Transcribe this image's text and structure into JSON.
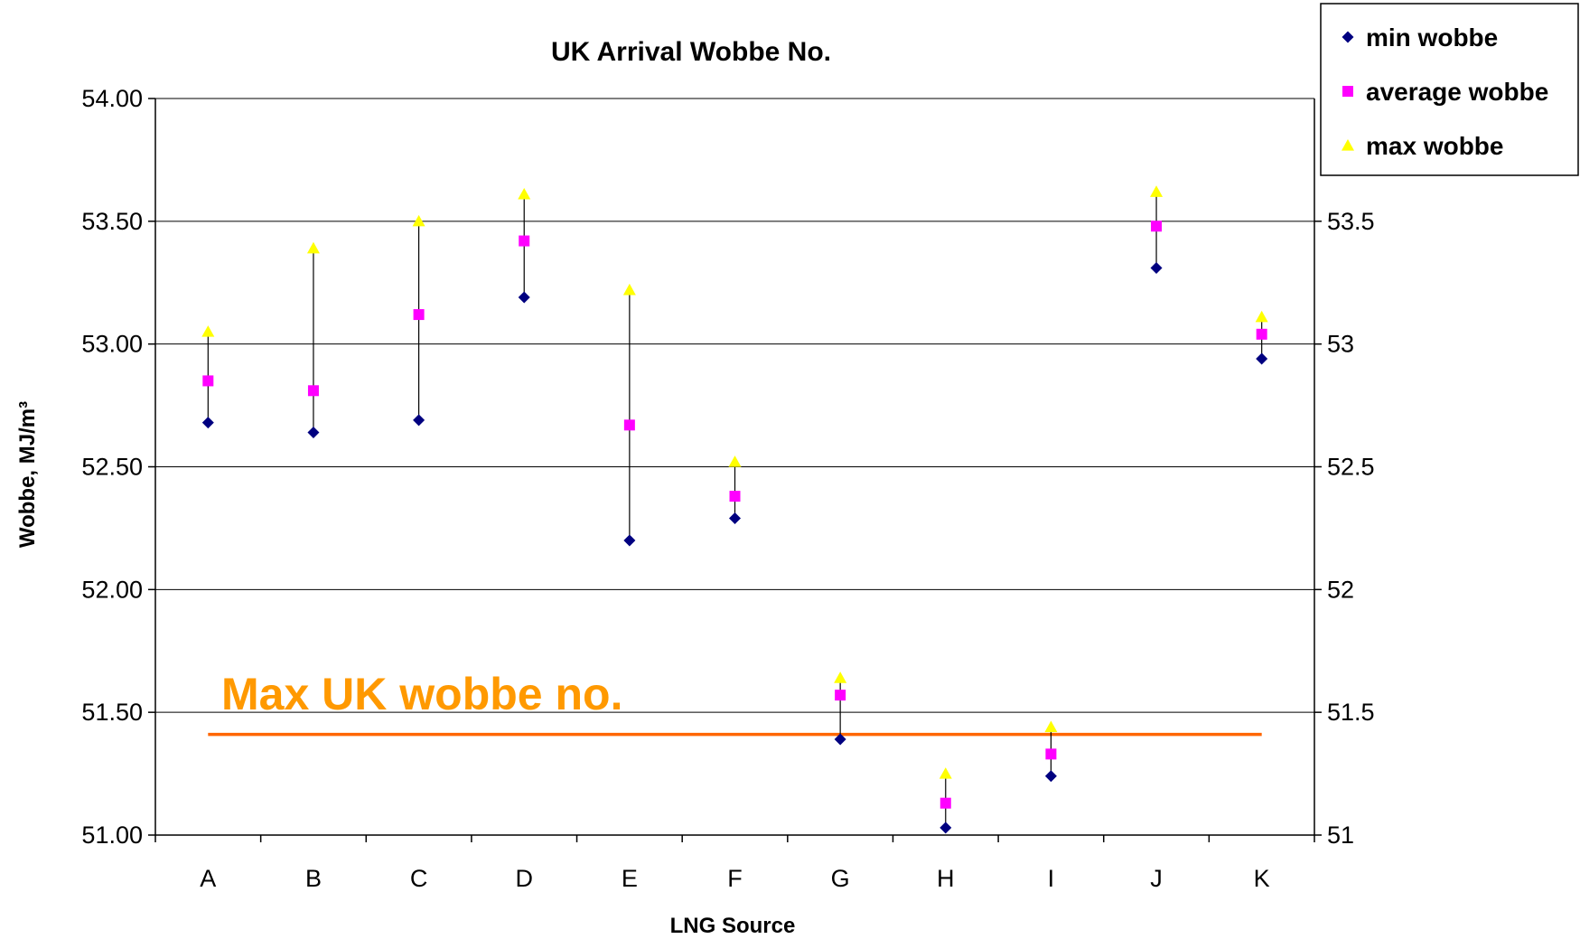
{
  "chart_data": {
    "type": "scatter",
    "title": "UK Arrival Wobbe No.",
    "xlabel": "LNG Source",
    "ylabel": "Wobbe, MJ/m³",
    "ylim": [
      51.0,
      54.0
    ],
    "y_ticks_left": [
      "51.00",
      "51.50",
      "52.00",
      "52.50",
      "53.00",
      "53.50",
      "54.00"
    ],
    "y_ticks_right": [
      "51",
      "51.5",
      "52",
      "52.5",
      "53",
      "53.5"
    ],
    "grid": true,
    "legend_position": "top-right",
    "categories": [
      "A",
      "B",
      "C",
      "D",
      "E",
      "F",
      "G",
      "H",
      "I",
      "J",
      "K"
    ],
    "series": [
      {
        "name": "min wobbe",
        "marker": "diamond",
        "color": "#000080",
        "values": [
          52.68,
          52.64,
          52.69,
          53.19,
          52.2,
          52.29,
          51.39,
          51.03,
          51.24,
          53.31,
          52.94
        ]
      },
      {
        "name": "average wobbe",
        "marker": "square",
        "color": "#ff00ff",
        "values": [
          52.85,
          52.81,
          53.12,
          53.42,
          52.67,
          52.38,
          51.57,
          51.13,
          51.33,
          53.48,
          53.04
        ]
      },
      {
        "name": "max wobbe",
        "marker": "triangle",
        "color": "#ffff00",
        "values": [
          53.05,
          53.39,
          53.5,
          53.61,
          53.22,
          52.52,
          51.64,
          51.25,
          51.44,
          53.62,
          53.11
        ]
      }
    ],
    "reference_line": {
      "label": "Max UK wobbe no.",
      "value": 51.41,
      "color": "#ff6600",
      "label_color": "#ff9900"
    }
  }
}
